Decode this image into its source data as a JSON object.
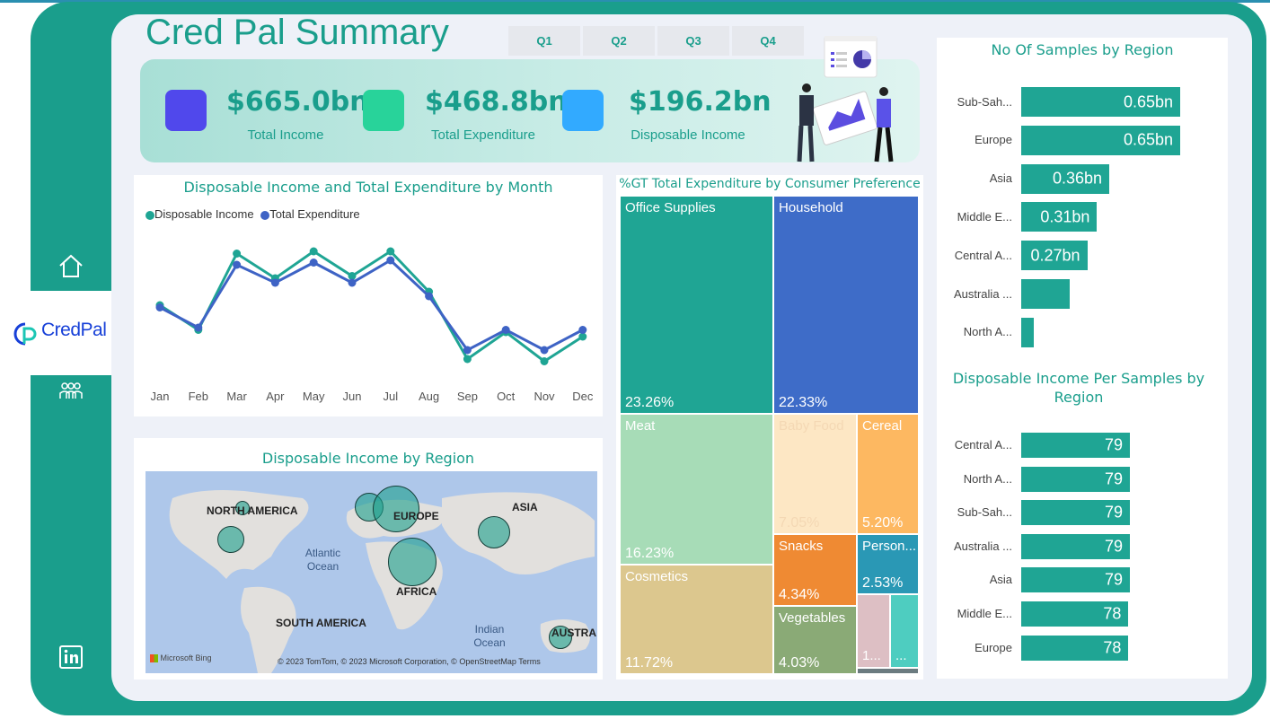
{
  "report": {
    "title": "Cred Pal Summary",
    "quarters": [
      "Q1",
      "Q2",
      "Q3",
      "Q4"
    ]
  },
  "sidebar": {
    "brand": "CredPal",
    "icons": [
      "home-icon",
      "people-icon",
      "linkedin-icon"
    ]
  },
  "kpis": [
    {
      "value": "$665.0bn",
      "label": "Total Income",
      "color": "#5048ec"
    },
    {
      "value": "$468.8bn",
      "label": "Total Expenditure",
      "color": "#28d39a"
    },
    {
      "value": "$196.2bn",
      "label": "Disposable Income",
      "color": "#32aaff"
    }
  ],
  "line_chart": {
    "title": "Disposable Income and Total Expenditure by Month",
    "legend": [
      "Disposable Income",
      "Total Expenditure"
    ],
    "colors": [
      "#1fa594",
      "#3e63c5"
    ]
  },
  "map": {
    "title": "Disposable Income by Region",
    "labels": {
      "north_america": "NORTH AMERICA",
      "europe": "EUROPE",
      "asia": "ASIA",
      "africa": "AFRICA",
      "south_america": "SOUTH AMERICA",
      "australia": "AUSTRA",
      "atlantic": "Atlantic Ocean",
      "indian": "Indian Ocean"
    },
    "attribution": "© 2023 TomTom, © 2023 Microsoft Corporation, © OpenStreetMap  Terms",
    "bing": "Microsoft Bing"
  },
  "treemap": {
    "title": "%GT Total Expenditure by Consumer Preference",
    "cells": [
      {
        "name": "Office Supplies",
        "value": "23.26%",
        "color": "#1fa594"
      },
      {
        "name": "Household",
        "value": "22.33%",
        "color": "#3e6cc8"
      },
      {
        "name": "Meat",
        "value": "16.23%",
        "color": "#a7dcb7"
      },
      {
        "name": "Baby Food",
        "value": "7.05%",
        "color": "#fde7c4"
      },
      {
        "name": "Cereal",
        "value": "5.20%",
        "color": "#fdb861"
      },
      {
        "name": "Cosmetics",
        "value": "11.72%",
        "color": "#dcc78e"
      },
      {
        "name": "Snacks",
        "value": "4.34%",
        "color": "#ef8a33"
      },
      {
        "name": "Person...",
        "value": "2.53%",
        "color": "#2a98b5"
      },
      {
        "name": "Vegetables",
        "value": "4.03%",
        "color": "#8aaa76"
      },
      {
        "name": "1...",
        "value": "",
        "color": "#ddbfc4"
      },
      {
        "name": "...",
        "value": "",
        "color": "#4ecdc0"
      },
      {
        "name": "",
        "value": "",
        "color": "#6b7b80"
      }
    ]
  },
  "samples_by_region": {
    "title": "No Of Samples by Region",
    "rows": [
      {
        "label": "Sub-Sah...",
        "value": 0.65,
        "text": "0.65bn"
      },
      {
        "label": "Europe",
        "value": 0.65,
        "text": "0.65bn"
      },
      {
        "label": "Asia",
        "value": 0.36,
        "text": "0.36bn"
      },
      {
        "label": "Middle E...",
        "value": 0.31,
        "text": "0.31bn"
      },
      {
        "label": "Central A...",
        "value": 0.27,
        "text": "0.27bn"
      },
      {
        "label": "Australia ...",
        "value": 0.2,
        "text": ""
      },
      {
        "label": "North A...",
        "value": 0.05,
        "text": ""
      }
    ]
  },
  "income_per_sample": {
    "title": "Disposable Income Per Samples by Region",
    "rows": [
      {
        "label": "Central A...",
        "value": 79,
        "text": "79"
      },
      {
        "label": "North A...",
        "value": 79,
        "text": "79"
      },
      {
        "label": "Sub-Sah...",
        "value": 79,
        "text": "79"
      },
      {
        "label": "Australia ...",
        "value": 79,
        "text": "79"
      },
      {
        "label": "Asia",
        "value": 79,
        "text": "79"
      },
      {
        "label": "Middle E...",
        "value": 78,
        "text": "78"
      },
      {
        "label": "Europe",
        "value": 78,
        "text": "78"
      }
    ]
  },
  "chart_data": [
    {
      "type": "line",
      "title": "Disposable Income and Total Expenditure by Month",
      "categories": [
        "Jan",
        "Feb",
        "Mar",
        "Apr",
        "May",
        "Jun",
        "Jul",
        "Aug",
        "Sep",
        "Oct",
        "Nov",
        "Dec"
      ],
      "series": [
        {
          "name": "Disposable Income",
          "values": [
            47,
            36,
            70,
            59,
            71,
            60,
            71,
            53,
            23,
            35,
            22,
            33
          ]
        },
        {
          "name": "Total Expenditure",
          "values": [
            46,
            37,
            65,
            57,
            66,
            57,
            67,
            51,
            27,
            36,
            27,
            36
          ]
        }
      ]
    },
    {
      "type": "bar",
      "title": "No Of Samples by Region",
      "categories": [
        "Sub-Sah...",
        "Europe",
        "Asia",
        "Middle E...",
        "Central A...",
        "Australia ...",
        "North A..."
      ],
      "values": [
        0.65,
        0.65,
        0.36,
        0.31,
        0.27,
        0.2,
        0.05
      ]
    },
    {
      "type": "bar",
      "title": "Disposable Income Per Samples by Region",
      "categories": [
        "Central A...",
        "North A...",
        "Sub-Sah...",
        "Australia ...",
        "Asia",
        "Middle E...",
        "Europe"
      ],
      "values": [
        79,
        79,
        79,
        79,
        79,
        78,
        78
      ]
    },
    {
      "type": "heatmap",
      "title": "%GT Total Expenditure by Consumer Preference",
      "categories": [
        "Office Supplies",
        "Household",
        "Meat",
        "Cosmetics",
        "Baby Food",
        "Cereal",
        "Snacks",
        "Vegetables",
        "Person..."
      ],
      "values": [
        23.26,
        22.33,
        16.23,
        11.72,
        7.05,
        5.2,
        4.34,
        4.03,
        2.53
      ]
    }
  ]
}
